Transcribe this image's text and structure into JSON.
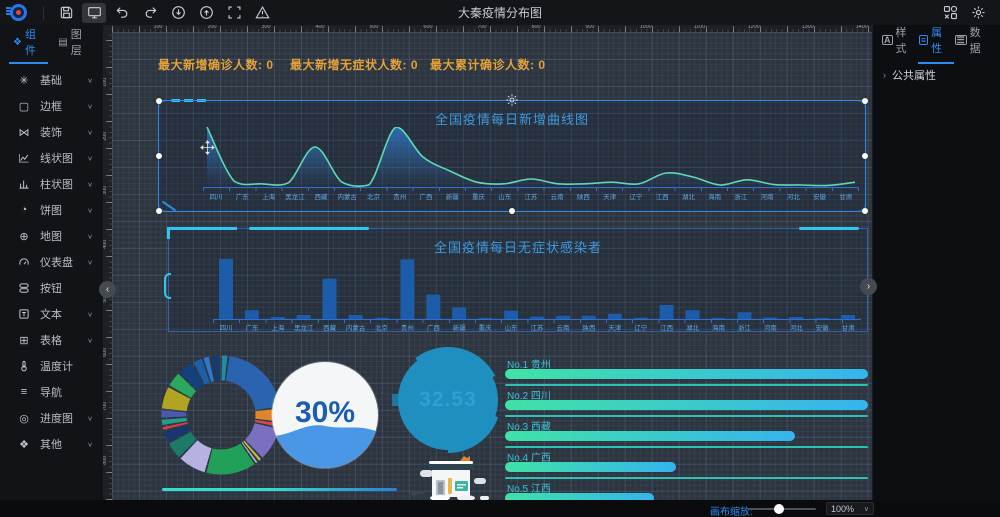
{
  "window": {
    "title": "大秦疫情分布图"
  },
  "toolbar": {
    "left_icons": [
      "save-icon",
      "monitor-preview-icon",
      "undo-icon",
      "redo-icon",
      "download-icon",
      "upload-icon",
      "fullscreen-icon",
      "warning-icon"
    ],
    "right_icons": [
      "components-library-icon",
      "settings-gear-icon"
    ],
    "active_icon": "monitor-preview-icon"
  },
  "left_panel": {
    "tabs": [
      {
        "label": "组件",
        "icon": "components-tab-icon",
        "active": true
      },
      {
        "label": "图层",
        "icon": "layers-tab-icon",
        "active": false
      }
    ],
    "items": [
      {
        "label": "基础",
        "icon": "base-icon",
        "chevron": true
      },
      {
        "label": "边框",
        "icon": "border-icon",
        "chevron": true
      },
      {
        "label": "装饰",
        "icon": "decoration-icon",
        "chevron": true
      },
      {
        "label": "线状图",
        "icon": "line-chart-icon",
        "chevron": true
      },
      {
        "label": "柱状图",
        "icon": "bar-chart-icon",
        "chevron": true
      },
      {
        "label": "饼图",
        "icon": "pie-chart-icon",
        "chevron": true
      },
      {
        "label": "地图",
        "icon": "map-icon",
        "chevron": true
      },
      {
        "label": "仪表盘",
        "icon": "gauge-icon",
        "chevron": true
      },
      {
        "label": "按钮",
        "icon": "button-icon",
        "chevron": false
      },
      {
        "label": "文本",
        "icon": "text-icon",
        "chevron": true
      },
      {
        "label": "表格",
        "icon": "table-icon",
        "chevron": true
      },
      {
        "label": "温度计",
        "icon": "thermometer-icon",
        "chevron": false
      },
      {
        "label": "导航",
        "icon": "nav-icon",
        "chevron": false
      },
      {
        "label": "进度图",
        "icon": "progress-icon",
        "chevron": true
      },
      {
        "label": "其他",
        "icon": "other-icon",
        "chevron": true
      }
    ]
  },
  "right_panel": {
    "tabs": [
      {
        "label": "样式",
        "icon": "style-tab-icon",
        "active": false
      },
      {
        "label": "属性",
        "icon": "props-tab-icon",
        "active": true
      },
      {
        "label": "数据",
        "icon": "data-tab-icon",
        "active": false
      }
    ],
    "sections": [
      {
        "label": "公共属性"
      }
    ]
  },
  "canvas": {
    "stats": [
      {
        "label": "最大新增确诊人数:",
        "value": "0"
      },
      {
        "label": "最大新增无症状人数:",
        "value": "0"
      },
      {
        "label": "最大累计确诊人数:",
        "value": "0"
      }
    ],
    "stat_color": "#e2a13c",
    "rulers": {
      "h_labels": [
        "100",
        "200",
        "300",
        "400",
        "500",
        "600",
        "700",
        "800",
        "900",
        "1000",
        "1100",
        "1200",
        "1300",
        "1400"
      ],
      "v_labels": [
        "100",
        "200",
        "300",
        "400",
        "500",
        "600",
        "700",
        "800"
      ]
    }
  },
  "chart_data": [
    {
      "type": "line",
      "title": "全国疫情每日新增曲线图",
      "categories": [
        "四川",
        "广东",
        "上海",
        "黑龙江",
        "西藏",
        "内蒙古",
        "北京",
        "贵州",
        "广西",
        "新疆",
        "重庆",
        "山东",
        "江苏",
        "云南",
        "陕西",
        "天津",
        "辽宁",
        "江西",
        "湖北",
        "海南",
        "浙江",
        "河南",
        "河北",
        "安徽",
        "甘肃"
      ],
      "values": [
        150,
        15,
        8,
        10,
        100,
        12,
        5,
        150,
        75,
        40,
        12,
        8,
        20,
        8,
        8,
        12,
        8,
        35,
        25,
        5,
        18,
        6,
        5,
        4,
        12
      ],
      "ylim": [
        0,
        150
      ],
      "yticks": [
        0,
        30,
        60,
        90,
        120,
        150
      ],
      "line_color": "#5fd8b8",
      "fill_color": "#2f7fd1",
      "legend": "none",
      "grid": "canvas-grid-showthrough"
    },
    {
      "type": "bar",
      "title": "全国疫情每日无症状感染者",
      "categories": [
        "四川",
        "广东",
        "上海",
        "黑龙江",
        "西藏",
        "内蒙古",
        "北京",
        "贵州",
        "广西",
        "新疆",
        "重庆",
        "山东",
        "江苏",
        "云南",
        "陕西",
        "天津",
        "辽宁",
        "江西",
        "湖北",
        "海南",
        "浙江",
        "河南",
        "河北",
        "安徽",
        "甘肃"
      ],
      "values": [
        150,
        22,
        5,
        10,
        101,
        10,
        3,
        149,
        61,
        29,
        2,
        21,
        6,
        8,
        8,
        13,
        3,
        35,
        22,
        1,
        17,
        4,
        5,
        1,
        10
      ],
      "ylim": [
        0,
        150
      ],
      "yticks": [
        0,
        30,
        60,
        90,
        120,
        150
      ],
      "bar_color": "#1d5ca8"
    },
    {
      "type": "pie",
      "title": "",
      "slices": [
        {
          "color": "#1f8ca8",
          "value": 2
        },
        {
          "color": "#2a63b0",
          "value": 21
        },
        {
          "color": "#e0862a",
          "value": 4
        },
        {
          "color": "#d84848",
          "value": 1.5
        },
        {
          "color": "#7a6fc0",
          "value": 9.5
        },
        {
          "color": "#c2bb3e",
          "value": 1.2
        },
        {
          "color": "#b9b9b9",
          "value": 1
        },
        {
          "color": "#22a05a",
          "value": 14
        },
        {
          "color": "#b7b0e2",
          "value": 8
        },
        {
          "color": "#1b7a68",
          "value": 5
        },
        {
          "color": "#16386e",
          "value": 3.5
        },
        {
          "color": "#d84040",
          "value": 1.3
        },
        {
          "color": "#22a08c",
          "value": 2
        },
        {
          "color": "#4a58b0",
          "value": 2.5
        },
        {
          "color": "#b0a422",
          "value": 6.5
        },
        {
          "color": "#2ba860",
          "value": 4.5
        },
        {
          "color": "#14407e",
          "value": 4.5
        },
        {
          "color": "#1d5fa8",
          "value": 3
        },
        {
          "color": "#2f77c8",
          "value": 2
        },
        {
          "color": "#1a3a6a",
          "value": 3
        }
      ]
    },
    {
      "type": "liquid-gauge",
      "label": "30%",
      "percent": 30,
      "text_color": "#1d5db0",
      "wave_color": "#4a97e8"
    },
    {
      "type": "dial-gauge",
      "value": "32.53",
      "color": "#1f8fc0"
    },
    {
      "type": "ranking-bars",
      "items": [
        {
          "label": "No.1 贵州",
          "pct": 100
        },
        {
          "label": "No.2 四川",
          "pct": 100
        },
        {
          "label": "No.3 西藏",
          "pct": 80
        },
        {
          "label": "No.4 广西",
          "pct": 47
        },
        {
          "label": "No.5 江西",
          "pct": 41
        }
      ],
      "bar_gradient": [
        "#3fe2a7",
        "#35b4ee"
      ]
    }
  ],
  "statusbar": {
    "zoom_label": "画布缩放:",
    "zoom_value": "100%",
    "slider_percent": 42
  }
}
